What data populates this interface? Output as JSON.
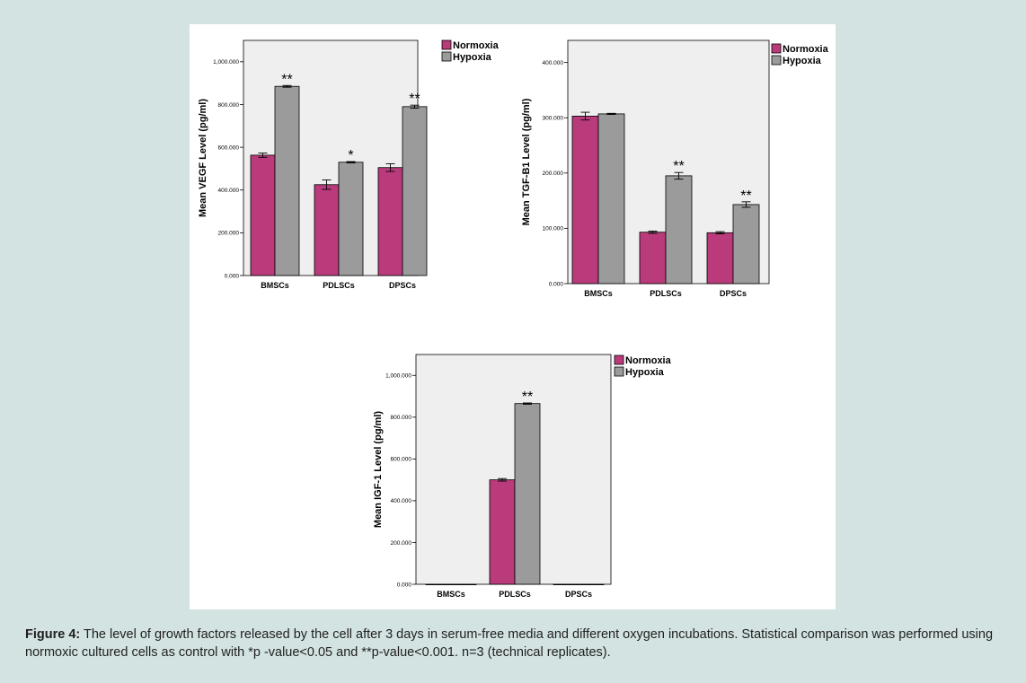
{
  "colors": {
    "normoxia": "#b93b7b",
    "hypoxia": "#9b9b9b",
    "plot_bg": "#efefef",
    "page_bg": "#d3e3e2"
  },
  "legend": [
    "Normoxia",
    "Hypoxia"
  ],
  "caption": {
    "label": "Figure 4:",
    "text": " The level of growth factors released by the cell after 3 days in serum-free media and different oxygen incubations. Statistical comparison was performed using normoxic cultured cells as control with *p -value<0.05 and **p-value<0.001. n=3 (technical replicates)."
  },
  "chart_data": [
    {
      "type": "bar",
      "categories": [
        "BMSCs",
        "PDLSCs",
        "DPSCs"
      ],
      "ylabel": "Mean VEGF Level (pg/ml)",
      "ylim": [
        0,
        1100
      ],
      "yticks": [
        0,
        200,
        400,
        600,
        800,
        1000
      ],
      "ytick_labels": [
        "0.000",
        "200.000",
        "400.000",
        "600.000",
        "800.000",
        "1,000.000"
      ],
      "series": [
        {
          "name": "Normoxia",
          "values": [
            563,
            425,
            505
          ],
          "errors": [
            10,
            22,
            18
          ]
        },
        {
          "name": "Hypoxia",
          "values": [
            885,
            530,
            790
          ],
          "errors": [
            4,
            3,
            7
          ]
        }
      ],
      "annotations": [
        "**",
        "*",
        "**"
      ],
      "legend_position": "top-right, outside"
    },
    {
      "type": "bar",
      "categories": [
        "BMSCs",
        "PDLSCs",
        "DPSCs"
      ],
      "ylabel": "Mean TGF-B1 Level (pg/ml)",
      "ylim": [
        0,
        440
      ],
      "yticks": [
        0,
        100,
        200,
        300,
        400
      ],
      "ytick_labels": [
        "0.000",
        "100.000",
        "200.000",
        "300.000",
        "400.000"
      ],
      "series": [
        {
          "name": "Normoxia",
          "values": [
            303,
            93,
            92
          ],
          "errors": [
            7,
            2,
            2
          ]
        },
        {
          "name": "Hypoxia",
          "values": [
            307,
            195,
            143
          ],
          "errors": [
            1,
            6,
            5
          ]
        }
      ],
      "annotations": [
        "",
        "**",
        "**"
      ],
      "legend_position": "top-right, outside"
    },
    {
      "type": "bar",
      "categories": [
        "BMSCs",
        "PDLSCs",
        "DPSCs"
      ],
      "ylabel": "Mean IGF-1 Level (pg/ml)",
      "ylim": [
        0,
        1100
      ],
      "yticks": [
        0,
        200,
        400,
        600,
        800,
        1000
      ],
      "ytick_labels": [
        "0.000",
        "200.000",
        "400.000",
        "600.000",
        "800.000",
        "1,000.000"
      ],
      "series": [
        {
          "name": "Normoxia",
          "values": [
            0,
            500,
            0
          ],
          "errors": [
            0,
            6,
            0
          ]
        },
        {
          "name": "Hypoxia",
          "values": [
            0,
            865,
            0
          ],
          "errors": [
            0,
            3,
            0
          ]
        }
      ],
      "annotations": [
        "",
        "**",
        ""
      ],
      "legend_position": "top-right, outside"
    }
  ]
}
